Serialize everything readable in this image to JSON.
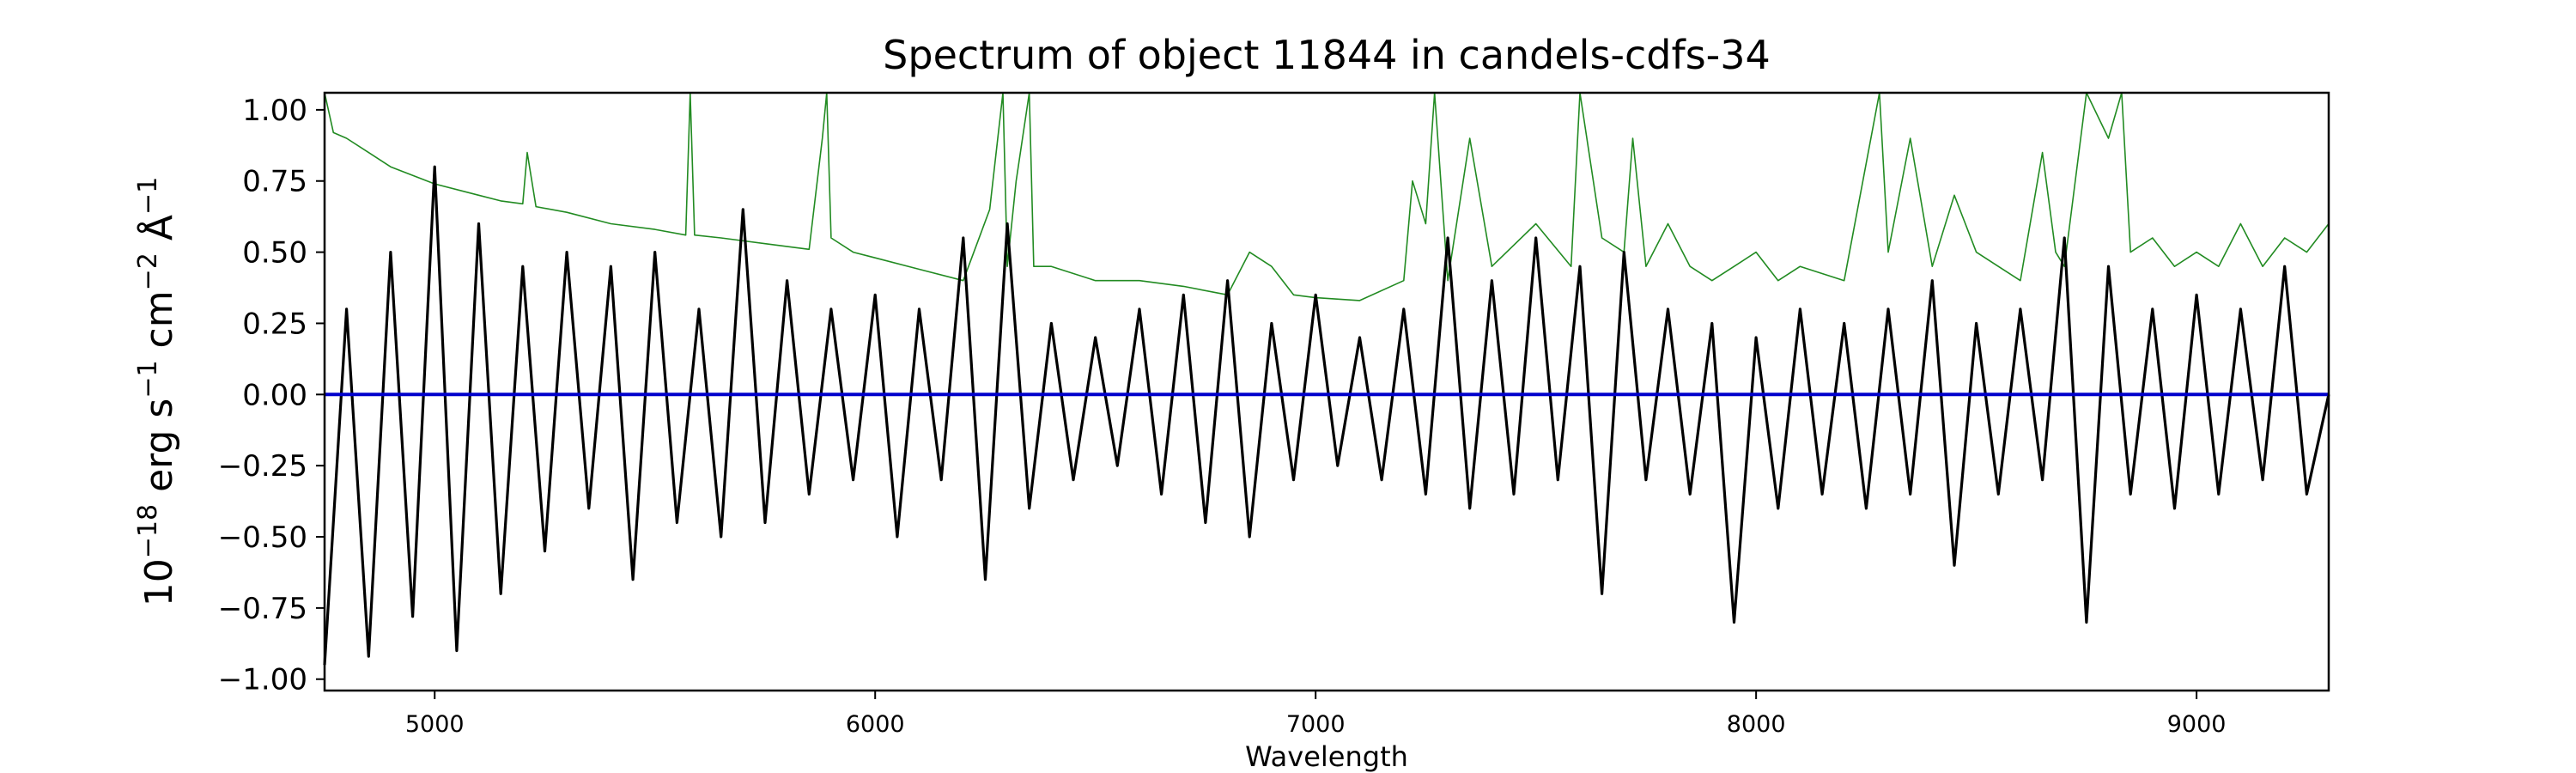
{
  "chart_data": {
    "type": "line",
    "title": "Spectrum of object 11844 in candels-cdfs-34",
    "xlabel": "Wavelength",
    "ylabel": {
      "base": "10",
      "exp": "−18",
      "unit": "erg s",
      "unit_exp1": "−1",
      "unit2": "cm",
      "unit_exp2": "−2",
      "unit3": "Å",
      "unit_exp3": "−1"
    },
    "xlim": [
      4750,
      9300
    ],
    "ylim": [
      -1.04,
      1.06
    ],
    "x_ticks": [
      5000,
      6000,
      7000,
      8000,
      9000
    ],
    "x_tick_labels": [
      "5000",
      "6000",
      "7000",
      "8000",
      "9000"
    ],
    "y_ticks": [
      -1.0,
      -0.75,
      -0.5,
      -0.25,
      0.0,
      0.25,
      0.5,
      0.75,
      1.0
    ],
    "y_tick_labels": [
      "−1.00",
      "−0.75",
      "−0.50",
      "−0.25",
      "0.00",
      "0.25",
      "0.50",
      "0.75",
      "1.00"
    ],
    "grid": false,
    "legend": "none",
    "series": [
      {
        "role": "flux",
        "color": "#000000",
        "x": [
          4750,
          4800,
          4850,
          4900,
          4950,
          5000,
          5050,
          5100,
          5150,
          5200,
          5250,
          5300,
          5350,
          5400,
          5450,
          5500,
          5550,
          5600,
          5650,
          5700,
          5750,
          5800,
          5850,
          5900,
          5950,
          6000,
          6050,
          6100,
          6150,
          6200,
          6250,
          6300,
          6350,
          6400,
          6450,
          6500,
          6550,
          6600,
          6650,
          6700,
          6750,
          6800,
          6850,
          6900,
          6950,
          7000,
          7050,
          7100,
          7150,
          7200,
          7250,
          7300,
          7350,
          7400,
          7450,
          7500,
          7550,
          7600,
          7650,
          7700,
          7750,
          7800,
          7850,
          7900,
          7950,
          8000,
          8050,
          8100,
          8150,
          8200,
          8250,
          8300,
          8350,
          8400,
          8450,
          8500,
          8550,
          8600,
          8650,
          8700,
          8750,
          8800,
          8850,
          8900,
          8950,
          9000,
          9050,
          9100,
          9150,
          9200,
          9250,
          9300
        ],
        "values": [
          -0.95,
          0.3,
          -0.92,
          0.5,
          -0.78,
          0.8,
          -0.9,
          0.6,
          -0.7,
          0.45,
          -0.55,
          0.5,
          -0.4,
          0.45,
          -0.65,
          0.5,
          -0.45,
          0.3,
          -0.5,
          0.65,
          -0.45,
          0.4,
          -0.35,
          0.3,
          -0.3,
          0.35,
          -0.5,
          0.3,
          -0.3,
          0.55,
          -0.65,
          0.6,
          -0.4,
          0.25,
          -0.3,
          0.2,
          -0.25,
          0.3,
          -0.35,
          0.35,
          -0.45,
          0.4,
          -0.5,
          0.25,
          -0.3,
          0.35,
          -0.25,
          0.2,
          -0.3,
          0.3,
          -0.35,
          0.55,
          -0.4,
          0.4,
          -0.35,
          0.55,
          -0.3,
          0.45,
          -0.7,
          0.5,
          -0.3,
          0.3,
          -0.35,
          0.25,
          -0.8,
          0.2,
          -0.4,
          0.3,
          -0.35,
          0.25,
          -0.4,
          0.3,
          -0.35,
          0.4,
          -0.6,
          0.25,
          -0.35,
          0.3,
          -0.3,
          0.55,
          -0.8,
          0.45,
          -0.35,
          0.3,
          -0.4,
          0.35,
          -0.35,
          0.3,
          -0.3,
          0.45,
          -0.35,
          0.0
        ]
      },
      {
        "role": "error",
        "color": "#228b22",
        "x": [
          4750,
          4770,
          4800,
          4850,
          4900,
          5000,
          5100,
          5150,
          5200,
          5210,
          5230,
          5300,
          5400,
          5500,
          5570,
          5580,
          5590,
          5650,
          5750,
          5850,
          5880,
          5890,
          5900,
          5950,
          6000,
          6100,
          6200,
          6260,
          6290,
          6300,
          6320,
          6350,
          6360,
          6400,
          6500,
          6600,
          6700,
          6800,
          6850,
          6900,
          6950,
          7000,
          7100,
          7200,
          7220,
          7250,
          7270,
          7300,
          7350,
          7400,
          7500,
          7580,
          7600,
          7650,
          7700,
          7720,
          7750,
          7800,
          7850,
          7900,
          7950,
          8000,
          8050,
          8100,
          8200,
          8280,
          8300,
          8350,
          8400,
          8450,
          8500,
          8550,
          8600,
          8650,
          8680,
          8700,
          8750,
          8800,
          8830,
          8850,
          8900,
          8950,
          9000,
          9050,
          9100,
          9150,
          9200,
          9250,
          9300
        ],
        "values": [
          1.06,
          0.92,
          0.9,
          0.85,
          0.8,
          0.74,
          0.7,
          0.68,
          0.67,
          0.85,
          0.66,
          0.64,
          0.6,
          0.58,
          0.56,
          1.06,
          0.56,
          0.55,
          0.53,
          0.51,
          0.9,
          1.06,
          0.55,
          0.5,
          0.48,
          0.44,
          0.4,
          0.65,
          1.06,
          0.45,
          0.75,
          1.06,
          0.45,
          0.45,
          0.4,
          0.4,
          0.38,
          0.35,
          0.5,
          0.45,
          0.35,
          0.34,
          0.33,
          0.4,
          0.75,
          0.6,
          1.06,
          0.4,
          0.9,
          0.45,
          0.6,
          0.45,
          1.06,
          0.55,
          0.5,
          0.9,
          0.45,
          0.6,
          0.45,
          0.4,
          0.45,
          0.5,
          0.4,
          0.45,
          0.4,
          1.06,
          0.5,
          0.9,
          0.45,
          0.7,
          0.5,
          0.45,
          0.4,
          0.85,
          0.5,
          0.45,
          1.06,
          0.9,
          1.06,
          0.5,
          0.55,
          0.45,
          0.5,
          0.45,
          0.6,
          0.45,
          0.55,
          0.5,
          0.6
        ]
      },
      {
        "role": "zero-line",
        "color": "#0000cc",
        "x": [
          4750,
          9300
        ],
        "values": [
          0.0,
          0.0
        ]
      }
    ]
  }
}
